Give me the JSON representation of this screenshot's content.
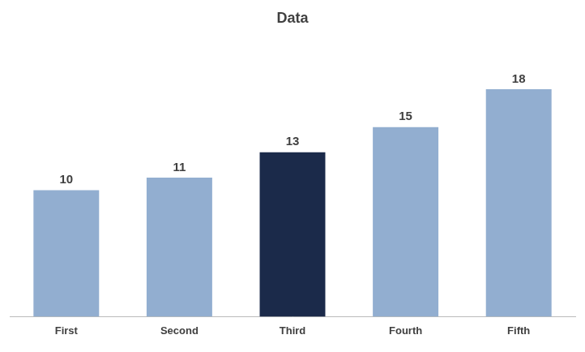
{
  "chart_data": {
    "type": "bar",
    "title": "Data",
    "categories": [
      "First",
      "Second",
      "Third",
      "Fourth",
      "Fifth"
    ],
    "values": [
      10,
      11,
      13,
      15,
      18
    ],
    "colors": [
      "#92aed0",
      "#92aed0",
      "#1b2a4a",
      "#92aed0",
      "#92aed0"
    ],
    "ylim": [
      0,
      22
    ],
    "grid": false,
    "data_labels": true,
    "tick_labels": "x"
  }
}
